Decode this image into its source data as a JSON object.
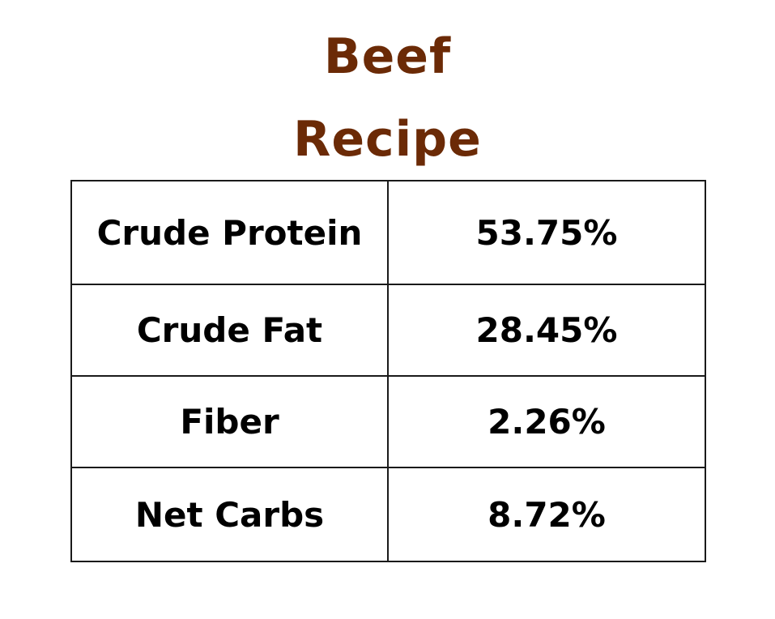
{
  "title": {
    "line1": "Beef",
    "line2": "Recipe",
    "color": "#6b2a06"
  },
  "nutrition": [
    {
      "label": "Crude Protein",
      "value": "53.75%"
    },
    {
      "label": "Crude Fat",
      "value": "28.45%"
    },
    {
      "label": "Fiber",
      "value": "2.26%"
    },
    {
      "label": "Net Carbs",
      "value": "8.72%"
    }
  ]
}
